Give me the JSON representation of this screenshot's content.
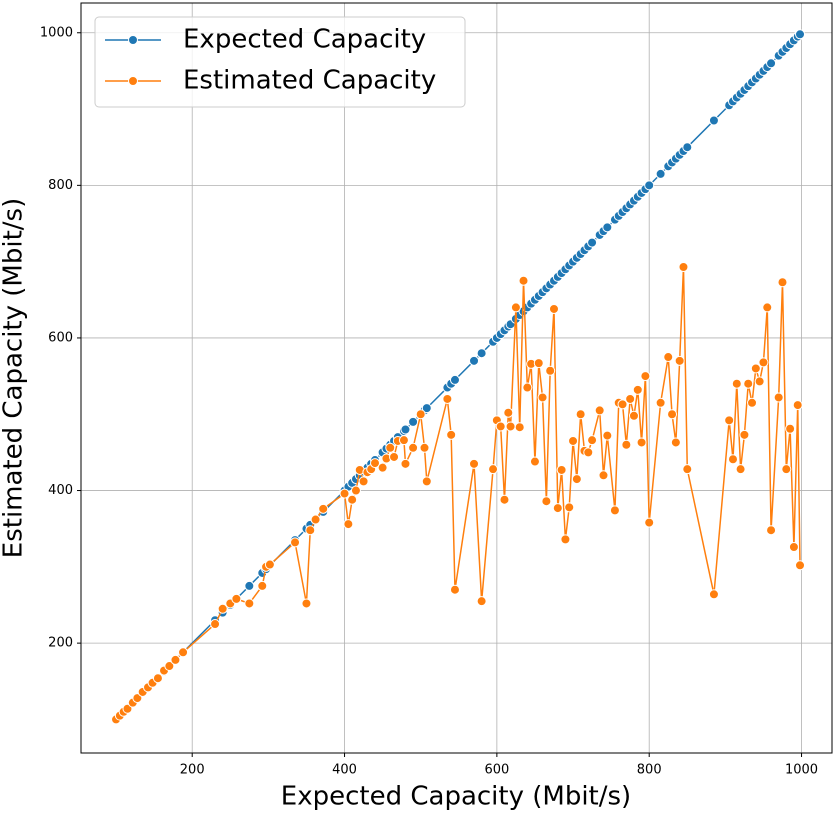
{
  "chart_data": {
    "type": "line",
    "xlabel": "Expected Capacity (Mbit/s)",
    "ylabel": "Estimated Capacity (Mbit/s)",
    "x": [
      100,
      105,
      110,
      115,
      122,
      128,
      135,
      142,
      148,
      155,
      163,
      170,
      178,
      188,
      230,
      240,
      250,
      258,
      275,
      292,
      297,
      302,
      335,
      350,
      355,
      362,
      372,
      400,
      405,
      410,
      415,
      420,
      425,
      430,
      435,
      440,
      450,
      455,
      460,
      465,
      470,
      478,
      480,
      490,
      500,
      505,
      508,
      535,
      540,
      545,
      570,
      580,
      595,
      600,
      605,
      610,
      615,
      618,
      625,
      630,
      635,
      640,
      645,
      650,
      655,
      660,
      665,
      670,
      675,
      680,
      685,
      690,
      695,
      700,
      705,
      710,
      715,
      720,
      725,
      735,
      740,
      745,
      755,
      760,
      765,
      770,
      775,
      780,
      785,
      790,
      795,
      800,
      815,
      825,
      830,
      835,
      840,
      845,
      850,
      885,
      905,
      910,
      915,
      920,
      925,
      930,
      935,
      940,
      945,
      950,
      955,
      960,
      970,
      975,
      980,
      985,
      990,
      995,
      998
    ],
    "series": [
      {
        "name": "Expected Capacity",
        "color": "#1f77b4",
        "values": [
          100,
          105,
          110,
          115,
          122,
          128,
          135,
          142,
          148,
          155,
          163,
          170,
          178,
          188,
          230,
          240,
          250,
          258,
          275,
          292,
          297,
          302,
          335,
          350,
          355,
          362,
          372,
          400,
          405,
          410,
          415,
          420,
          425,
          430,
          435,
          440,
          450,
          455,
          460,
          465,
          470,
          478,
          480,
          490,
          500,
          505,
          508,
          535,
          540,
          545,
          570,
          580,
          595,
          600,
          605,
          610,
          615,
          618,
          625,
          630,
          635,
          640,
          645,
          650,
          655,
          660,
          665,
          670,
          675,
          680,
          685,
          690,
          695,
          700,
          705,
          710,
          715,
          720,
          725,
          735,
          740,
          745,
          755,
          760,
          765,
          770,
          775,
          780,
          785,
          790,
          795,
          800,
          815,
          825,
          830,
          835,
          840,
          845,
          850,
          885,
          905,
          910,
          915,
          920,
          925,
          930,
          935,
          940,
          945,
          950,
          955,
          960,
          970,
          975,
          980,
          985,
          990,
          995,
          998
        ]
      },
      {
        "name": "Estimated Capacity",
        "color": "#ff7f0e",
        "values": [
          100,
          105,
          110,
          114,
          122,
          128,
          136,
          142,
          148,
          154,
          164,
          170,
          178,
          188,
          225,
          245,
          252,
          258,
          252,
          275,
          300,
          303,
          332,
          252,
          348,
          362,
          376,
          396,
          356,
          388,
          400,
          427,
          412,
          424,
          428,
          436,
          430,
          442,
          456,
          444,
          465,
          466,
          435,
          456,
          500,
          456,
          412,
          520,
          473,
          270,
          435,
          255,
          428,
          492,
          484,
          388,
          502,
          484,
          640,
          483,
          675,
          535,
          566,
          438,
          567,
          522,
          386,
          557,
          638,
          377,
          427,
          336,
          378,
          465,
          415,
          500,
          452,
          450,
          466,
          505,
          420,
          472,
          374,
          515,
          513,
          460,
          520,
          498,
          532,
          463,
          550,
          358,
          515,
          575,
          500,
          463,
          570,
          693,
          428,
          264,
          492,
          441,
          540,
          428,
          473,
          540,
          515,
          560,
          543,
          568,
          640,
          348,
          522,
          673,
          428,
          481,
          326,
          512,
          302
        ]
      }
    ],
    "xlim": [
      54,
      1040
    ],
    "ylim": [
      56,
      1039
    ],
    "xticks": [
      200,
      400,
      600,
      800,
      1000
    ],
    "yticks": [
      200,
      400,
      600,
      800,
      1000
    ],
    "grid": true,
    "legend": "upper-left"
  }
}
